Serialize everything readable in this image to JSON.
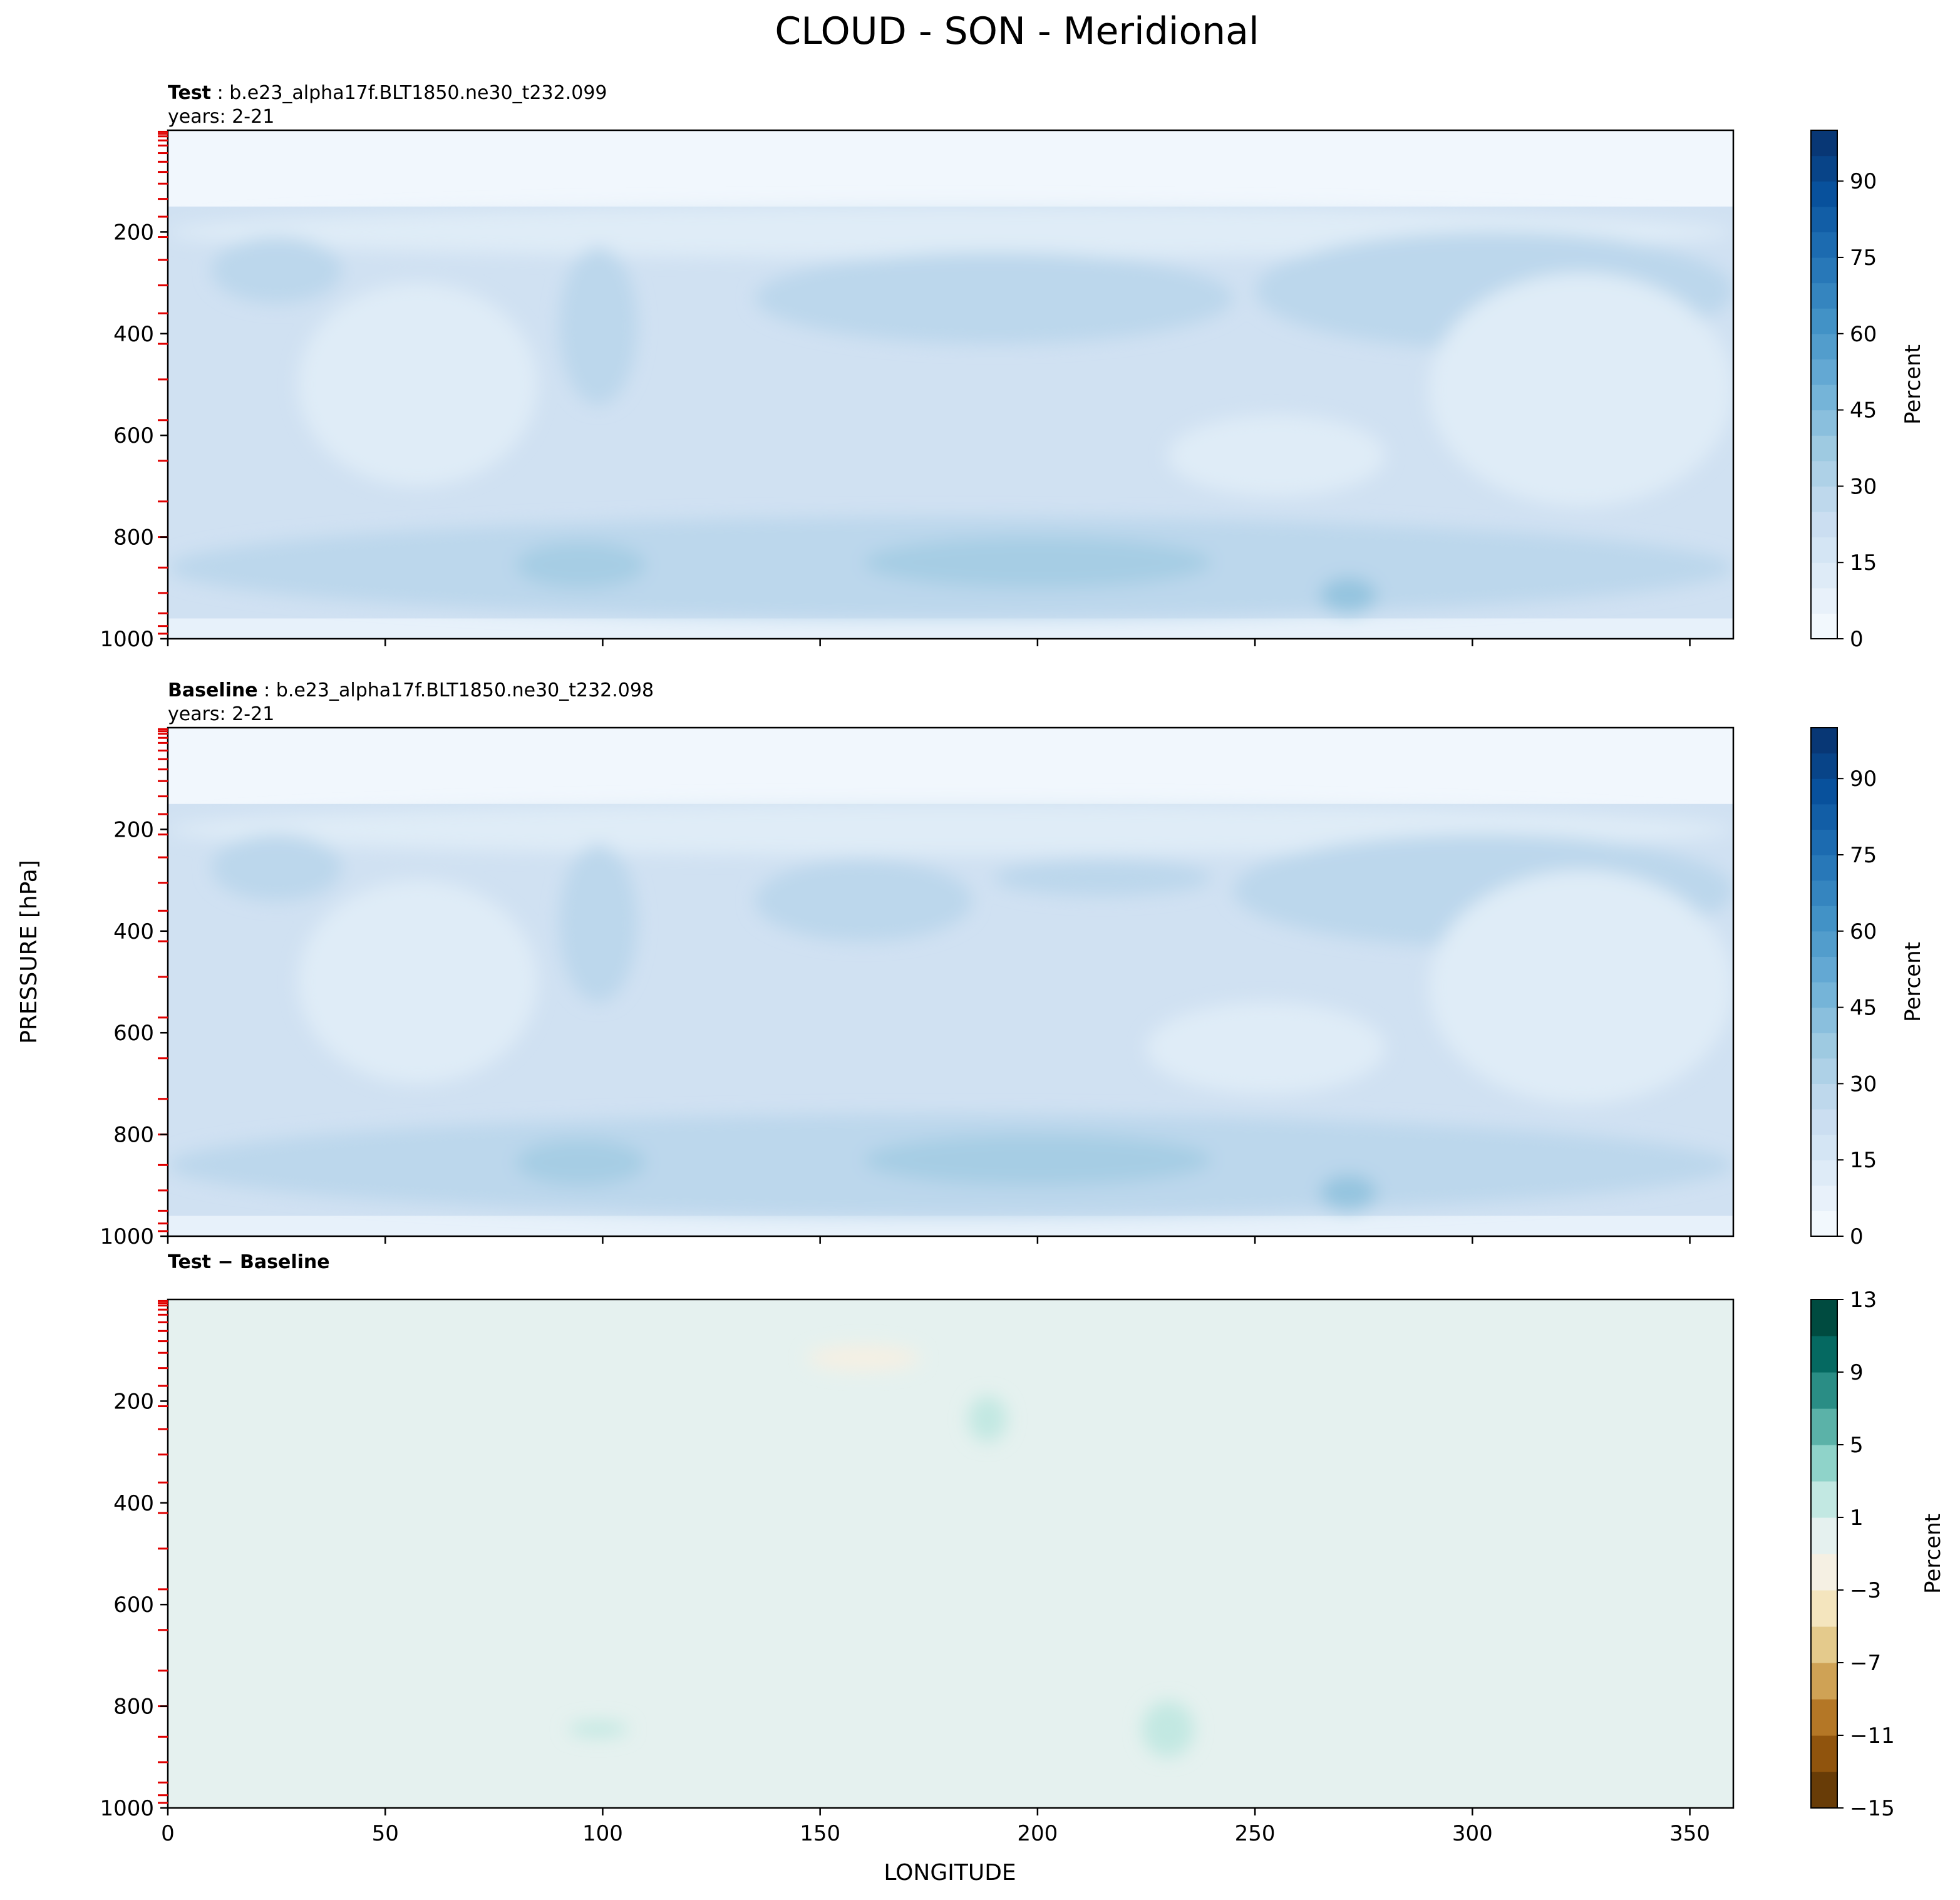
{
  "figure": {
    "title": "CLOUD - SON - Meridional",
    "ylabel": "PRESSURE [hPa]",
    "xlabel": "LONGITUDE"
  },
  "chart_data": [
    {
      "type": "heatmap",
      "panel": "test",
      "label_bold": "Test",
      "label_rest": " : b.e23_alpha17f.BLT1850.ne30_t232.099",
      "subtitle": "years: 2-21",
      "x_range": [
        0,
        360
      ],
      "y_range": [
        1000,
        0
      ],
      "y_ticks": [
        200,
        400,
        600,
        800,
        1000
      ],
      "colorbar": {
        "label": "Percent",
        "ticks": [
          0,
          15,
          30,
          45,
          60,
          75,
          90
        ],
        "range": [
          0,
          100
        ],
        "colormap": "Blues"
      },
      "background_level": 20,
      "features": [
        {
          "desc": "high cloud band",
          "lon": [
            0,
            360
          ],
          "p": [
            150,
            250
          ],
          "value": 12
        },
        {
          "desc": "upper cloud",
          "lon": [
            10,
            40
          ],
          "p": [
            210,
            340
          ],
          "value": 28
        },
        {
          "desc": "upper cloud",
          "lon": [
            90,
            108
          ],
          "p": [
            230,
            540
          ],
          "value": 28
        },
        {
          "desc": "upper cloud",
          "lon": [
            135,
            245
          ],
          "p": [
            240,
            420
          ],
          "value": 28
        },
        {
          "desc": "upper cloud",
          "lon": [
            250,
            360
          ],
          "p": [
            200,
            430
          ],
          "value": 28
        },
        {
          "desc": "mid-level clear",
          "lon": [
            30,
            85
          ],
          "p": [
            300,
            700
          ],
          "value": 12
        },
        {
          "desc": "mid-level clear",
          "lon": [
            230,
            280
          ],
          "p": [
            560,
            720
          ],
          "value": 12
        },
        {
          "desc": "mid-level clear",
          "lon": [
            290,
            360
          ],
          "p": [
            280,
            740
          ],
          "value": 12
        },
        {
          "desc": "low cloud deck",
          "lon": [
            0,
            360
          ],
          "p": [
            760,
            960
          ],
          "value": 28
        },
        {
          "desc": "low cloud max",
          "lon": [
            80,
            110
          ],
          "p": [
            810,
            900
          ],
          "value": 35
        },
        {
          "desc": "low cloud max",
          "lon": [
            160,
            240
          ],
          "p": [
            800,
            900
          ],
          "value": 35
        },
        {
          "desc": "low cloud max",
          "lon": [
            265,
            278
          ],
          "p": [
            880,
            950
          ],
          "value": 40
        }
      ]
    },
    {
      "type": "heatmap",
      "panel": "baseline",
      "label_bold": "Baseline",
      "label_rest": " : b.e23_alpha17f.BLT1850.ne30_t232.098",
      "subtitle": "years: 2-21",
      "x_range": [
        0,
        360
      ],
      "y_range": [
        1000,
        0
      ],
      "y_ticks": [
        200,
        400,
        600,
        800,
        1000
      ],
      "colorbar": {
        "label": "Percent",
        "ticks": [
          0,
          15,
          30,
          45,
          60,
          75,
          90
        ],
        "range": [
          0,
          100
        ],
        "colormap": "Blues"
      },
      "background_level": 20,
      "features": [
        {
          "desc": "high cloud band",
          "lon": [
            0,
            360
          ],
          "p": [
            150,
            250
          ],
          "value": 12
        },
        {
          "desc": "upper cloud",
          "lon": [
            10,
            40
          ],
          "p": [
            210,
            340
          ],
          "value": 28
        },
        {
          "desc": "upper cloud",
          "lon": [
            90,
            108
          ],
          "p": [
            230,
            540
          ],
          "value": 28
        },
        {
          "desc": "upper cloud",
          "lon": [
            135,
            185
          ],
          "p": [
            260,
            420
          ],
          "value": 28
        },
        {
          "desc": "upper cloud",
          "lon": [
            190,
            240
          ],
          "p": [
            260,
            330
          ],
          "value": 28
        },
        {
          "desc": "upper cloud",
          "lon": [
            245,
            360
          ],
          "p": [
            210,
            430
          ],
          "value": 28
        },
        {
          "desc": "mid-level clear",
          "lon": [
            30,
            85
          ],
          "p": [
            300,
            700
          ],
          "value": 12
        },
        {
          "desc": "mid-level clear",
          "lon": [
            225,
            280
          ],
          "p": [
            540,
            720
          ],
          "value": 12
        },
        {
          "desc": "mid-level clear",
          "lon": [
            290,
            360
          ],
          "p": [
            280,
            740
          ],
          "value": 12
        },
        {
          "desc": "low cloud deck",
          "lon": [
            0,
            360
          ],
          "p": [
            760,
            960
          ],
          "value": 28
        },
        {
          "desc": "low cloud max",
          "lon": [
            80,
            110
          ],
          "p": [
            810,
            900
          ],
          "value": 35
        },
        {
          "desc": "low cloud max",
          "lon": [
            160,
            240
          ],
          "p": [
            800,
            900
          ],
          "value": 35
        },
        {
          "desc": "low cloud max",
          "lon": [
            265,
            278
          ],
          "p": [
            880,
            950
          ],
          "value": 40
        }
      ]
    },
    {
      "type": "heatmap",
      "panel": "difference",
      "label_bold": "Test − Baseline",
      "label_rest": "",
      "subtitle": "",
      "x_range": [
        0,
        360
      ],
      "y_range": [
        1000,
        0
      ],
      "x_ticks": [
        0,
        50,
        100,
        150,
        200,
        250,
        300,
        350
      ],
      "y_ticks": [
        200,
        400,
        600,
        800,
        1000
      ],
      "colorbar": {
        "label": "Percent",
        "ticks": [
          -15,
          -11,
          -7,
          -3,
          1,
          5,
          9,
          13
        ],
        "tick_labels": [
          "−15",
          "−11",
          "−7",
          "−3",
          "1",
          "5",
          "9",
          "13"
        ],
        "range": [
          -15,
          13
        ],
        "colormap": "BrBG"
      },
      "background_level": 0,
      "features": [
        {
          "desc": "negative anomaly",
          "lon": [
            147,
            173
          ],
          "p": [
            90,
            140
          ],
          "value": -2
        },
        {
          "desc": "positive anomaly",
          "lon": [
            184,
            193
          ],
          "p": [
            190,
            280
          ],
          "value": 2
        },
        {
          "desc": "positive anomaly",
          "lon": [
            92,
            106
          ],
          "p": [
            830,
            860
          ],
          "value": 2
        },
        {
          "desc": "positive anomaly",
          "lon": [
            224,
            236
          ],
          "p": [
            790,
            900
          ],
          "value": 2
        }
      ]
    }
  ]
}
